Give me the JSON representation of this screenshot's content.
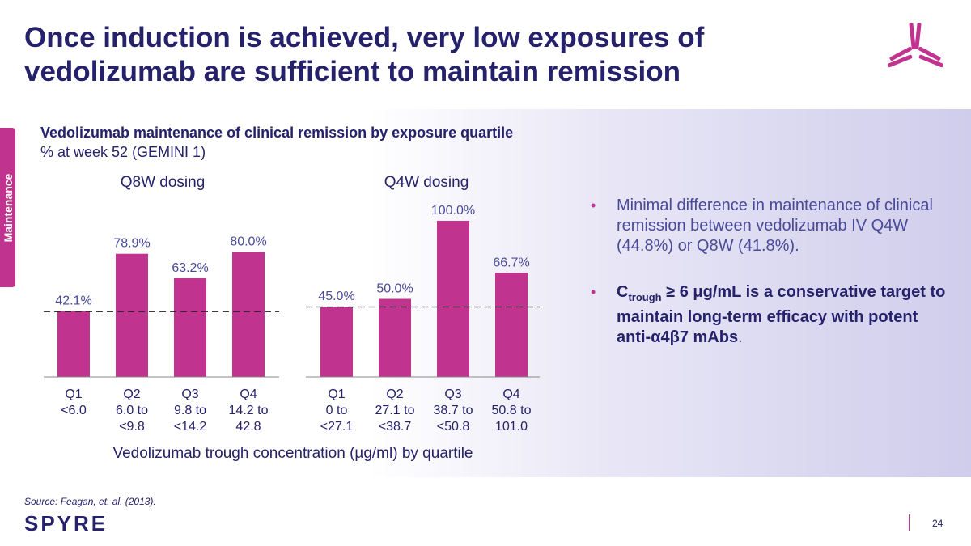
{
  "slide": {
    "title": "Once induction is achieved, very low exposures of vedolizumab are sufficient to maintain remission",
    "section_tab": "Maintenance",
    "source": "Source: Feagan, et. al. (2013).",
    "brand": "SPYRE",
    "page_number": "24"
  },
  "chart_heading": {
    "title": "Vedolizumab maintenance of clinical remission by exposure quartile",
    "subtitle": "% at week 52 (GEMINI 1)"
  },
  "bullets": [
    {
      "text": "Minimal difference in maintenance of clinical remission between vedolizumab IV Q4W (44.8%) or Q8W (41.8%)."
    },
    {
      "c": "C",
      "sub": "trough",
      "rest": " ≥ 6 μg/mL is a conservative target to maintain long-term efficacy with potent anti-α4β7 mAbs",
      "end": "."
    }
  ],
  "colors": {
    "bar": "#c0338f",
    "title": "#25226b",
    "accent": "#c0338f"
  },
  "chart_data": {
    "type": "bar",
    "ylabel": "% at week 52",
    "xlabel": "Vedolizumab trough concentration (µg/ml) by quartile",
    "ylim": [
      0,
      100
    ],
    "panels": [
      {
        "name": "Q8W dosing",
        "categories": [
          [
            "Q1",
            "<6.0"
          ],
          [
            "Q2",
            "6.0 to",
            "<9.8"
          ],
          [
            "Q3",
            "9.8 to",
            "<14.2"
          ],
          [
            "Q4",
            "14.2 to",
            "42.8"
          ]
        ],
        "values": [
          42.1,
          78.9,
          63.2,
          80.0
        ],
        "labels": [
          "42.1%",
          "78.9%",
          "63.2%",
          "80.0%"
        ],
        "reference_line": 41.8
      },
      {
        "name": "Q4W dosing",
        "categories": [
          [
            "Q1",
            "0 to",
            "<27.1"
          ],
          [
            "Q2",
            "27.1 to",
            "<38.7"
          ],
          [
            "Q3",
            "38.7 to",
            "<50.8"
          ],
          [
            "Q4",
            "50.8 to",
            "101.0"
          ]
        ],
        "values": [
          45.0,
          50.0,
          100.0,
          66.7
        ],
        "labels": [
          "45.0%",
          "50.0%",
          "100.0%",
          "66.7%"
        ],
        "reference_line": 44.8
      }
    ]
  }
}
